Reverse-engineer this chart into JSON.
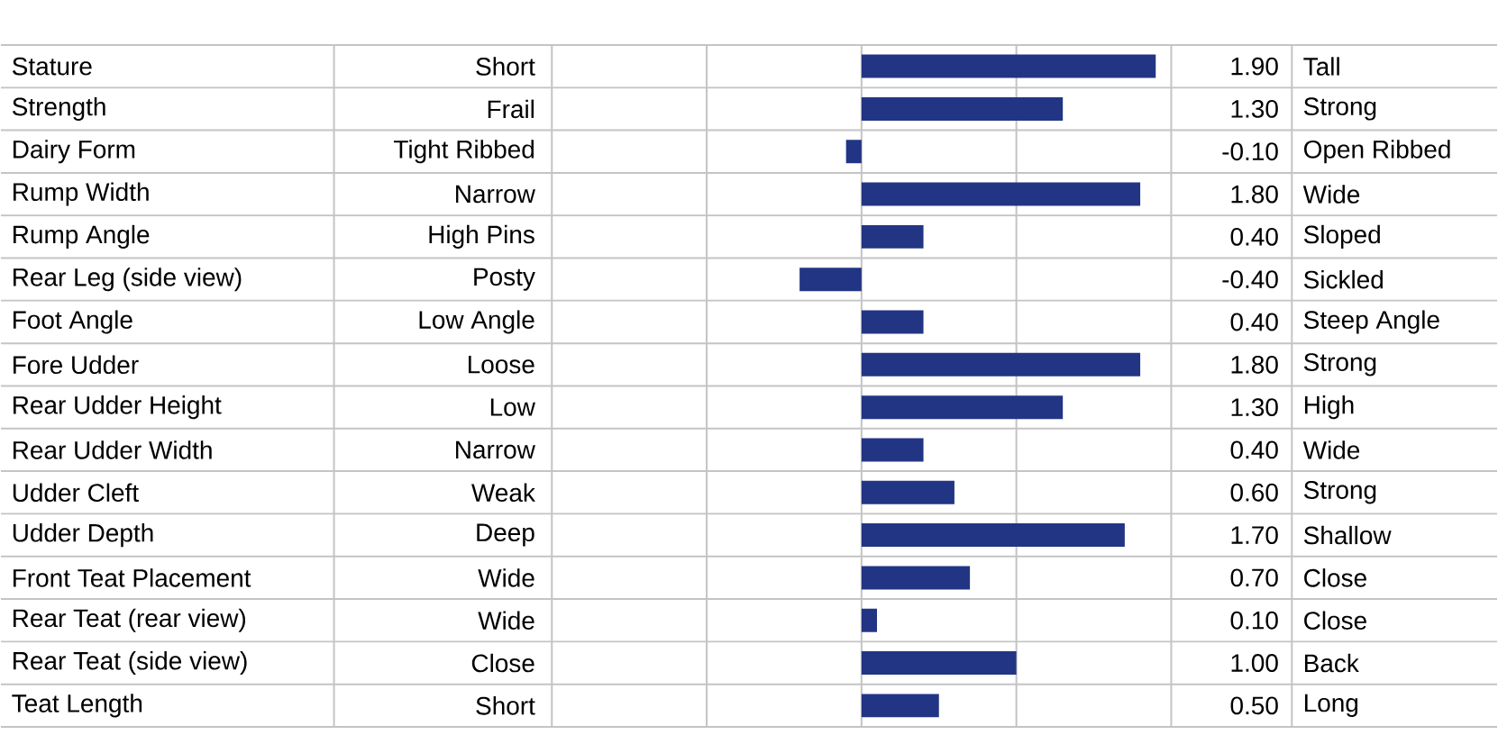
{
  "chart_data": {
    "type": "bar",
    "orientation": "horizontal",
    "categories": [
      "Stature",
      "Strength",
      "Dairy Form",
      "Rump Width",
      "Rump Angle",
      "Rear Leg (side view)",
      "Foot Angle",
      "Fore Udder",
      "Rear Udder Height",
      "Rear Udder Width",
      "Udder Cleft",
      "Udder Depth",
      "Front Teat Placement",
      "Rear Teat (rear view)",
      "Rear Teat (side view)",
      "Teat Length"
    ],
    "values": [
      1.9,
      1.3,
      -0.1,
      1.8,
      0.4,
      -0.4,
      0.4,
      1.8,
      1.3,
      0.4,
      0.6,
      1.7,
      0.7,
      0.1,
      1.0,
      0.5
    ],
    "value_labels": [
      "1.90",
      "1.30",
      "-0.10",
      "1.80",
      "0.40",
      "-0.40",
      "0.40",
      "1.80",
      "1.30",
      "0.40",
      "0.60",
      "1.70",
      "0.70",
      "0.10",
      "1.00",
      "0.50"
    ],
    "color": "#223584",
    "xlim": [
      -2,
      2
    ],
    "xticks": [
      {
        "value": -2,
        "label": null
      },
      {
        "value": -1,
        "label": null
      },
      {
        "value": 0,
        "label": null
      },
      {
        "value": 1,
        "label": null
      },
      {
        "value": 2,
        "label": null
      }
    ],
    "grid": "x",
    "tick_labels": "y",
    "annotations": [
      "Short",
      "Frail",
      "Tight Ribbed",
      "Narrow",
      "High Pins",
      "Posty",
      "Low Angle",
      "Loose",
      "Low",
      "Narrow",
      "Weak",
      "Deep",
      "Wide",
      "Wide",
      "Close",
      "Short",
      "Tall",
      "Strong",
      "Open Ribbed",
      "Wide",
      "Sloped",
      "Sickled",
      "Steep Angle",
      "Strong",
      "High",
      "Wide",
      "Strong",
      "Shallow",
      "Close",
      "Close",
      "Back",
      "Long"
    ]
  }
}
